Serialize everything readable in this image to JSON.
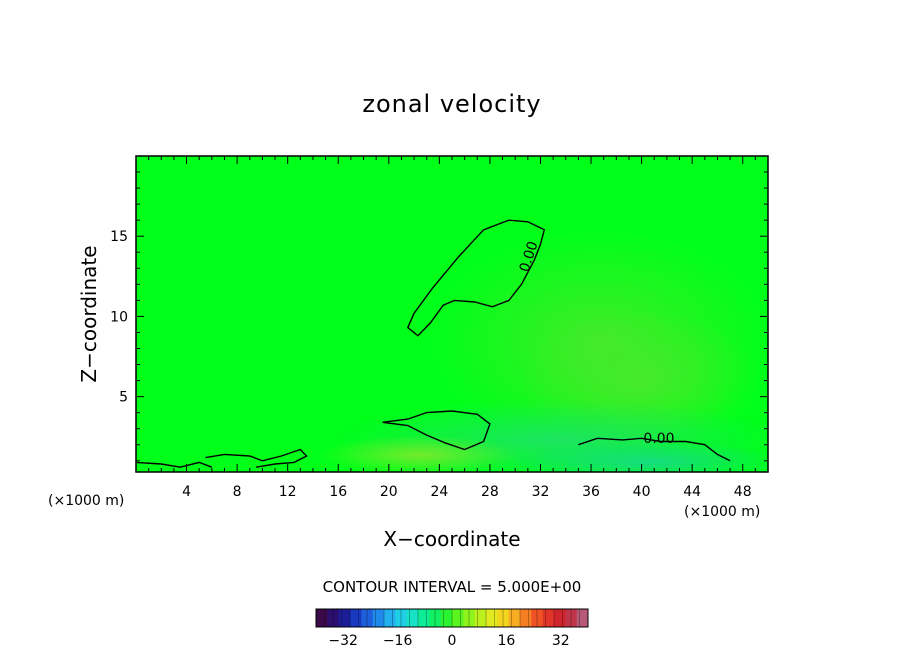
{
  "chart_data": {
    "type": "heatmap",
    "title": "zonal velocity",
    "xlabel": "X−coordinate",
    "ylabel": "Z−coordinate",
    "x_unit": "(×1000 m)",
    "y_unit": "(×1000 m)",
    "xlim": [
      0,
      50
    ],
    "ylim": [
      0.3,
      20
    ],
    "x_ticks": [
      4,
      8,
      12,
      16,
      20,
      24,
      28,
      32,
      36,
      40,
      44,
      48
    ],
    "y_ticks": [
      5,
      10,
      15
    ],
    "contour_interval_text": "CONTOUR INTERVAL = 5.000E+00",
    "contour_label": "0.00",
    "contours": [
      {
        "level": 0,
        "points": [
          [
            29.5,
            16.0
          ],
          [
            27.5,
            15.4
          ],
          [
            25.5,
            13.7
          ],
          [
            23.5,
            11.8
          ],
          [
            22.0,
            10.2
          ],
          [
            21.5,
            9.3
          ],
          [
            22.3,
            8.8
          ],
          [
            23.3,
            9.6
          ],
          [
            24.3,
            10.7
          ],
          [
            25.2,
            11.0
          ],
          [
            26.8,
            10.9
          ],
          [
            28.2,
            10.6
          ],
          [
            29.5,
            11.0
          ],
          [
            30.5,
            12.0
          ],
          [
            31.5,
            13.5
          ],
          [
            32.0,
            14.5
          ],
          [
            32.3,
            15.4
          ],
          [
            31.0,
            15.9
          ],
          [
            29.5,
            16.0
          ]
        ]
      },
      {
        "level": 0,
        "points": [
          [
            19.5,
            3.4
          ],
          [
            21.5,
            3.6
          ],
          [
            23.0,
            4.0
          ],
          [
            25.0,
            4.1
          ],
          [
            27.0,
            3.9
          ],
          [
            28.0,
            3.3
          ],
          [
            27.5,
            2.2
          ],
          [
            26.0,
            1.7
          ],
          [
            24.5,
            2.1
          ],
          [
            23.0,
            2.6
          ],
          [
            21.5,
            3.2
          ],
          [
            19.5,
            3.4
          ]
        ]
      },
      {
        "level": 0,
        "points": [
          [
            35.0,
            2.0
          ],
          [
            36.5,
            2.4
          ],
          [
            38.5,
            2.3
          ],
          [
            40.0,
            2.4
          ],
          [
            41.5,
            2.2
          ],
          [
            43.5,
            2.2
          ],
          [
            45.0,
            2.0
          ],
          [
            46.0,
            1.4
          ],
          [
            47.0,
            1.0
          ]
        ]
      },
      {
        "level": 0,
        "points": [
          [
            0.0,
            0.9
          ],
          [
            2.0,
            0.8
          ],
          [
            3.5,
            0.6
          ],
          [
            5.0,
            0.9
          ],
          [
            6.0,
            0.6
          ]
        ]
      },
      {
        "level": 0,
        "points": [
          [
            5.5,
            1.2
          ],
          [
            7.0,
            1.4
          ],
          [
            9.0,
            1.3
          ],
          [
            10.0,
            1.0
          ],
          [
            11.5,
            1.3
          ],
          [
            13.0,
            1.7
          ],
          [
            13.5,
            1.3
          ],
          [
            12.5,
            0.9
          ],
          [
            11.0,
            0.8
          ],
          [
            9.5,
            0.6
          ]
        ]
      }
    ],
    "colorbar": {
      "ticks": [
        -32,
        -16,
        0,
        16,
        32
      ],
      "range": [
        -40,
        40
      ],
      "colors": [
        "#3a0a4a",
        "#2a0f6e",
        "#1b1e96",
        "#1838bf",
        "#1e5fdb",
        "#1f8aeb",
        "#22b0ef",
        "#20cfe6",
        "#17e2c5",
        "#0fec97",
        "#11ef62",
        "#2af431",
        "#5af420",
        "#8ef41d",
        "#bdf11c",
        "#e0ea1e",
        "#f3d41f",
        "#f8ac22",
        "#f57f23",
        "#ee5225",
        "#e23427",
        "#d0242d",
        "#c0344a",
        "#b65a78"
      ]
    },
    "background_color": "#00ff19"
  }
}
